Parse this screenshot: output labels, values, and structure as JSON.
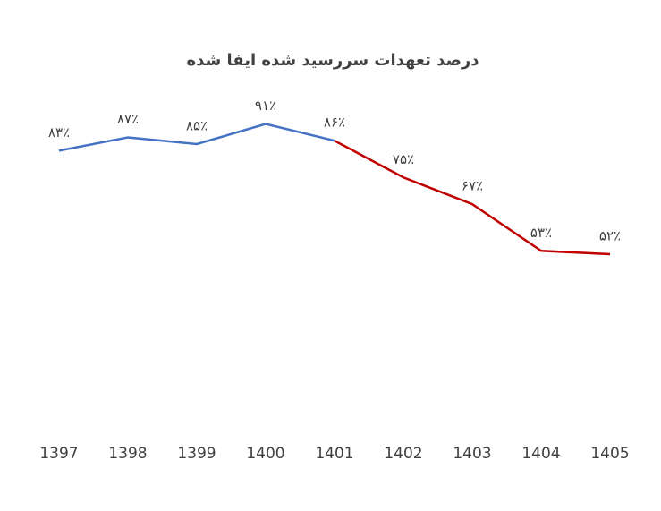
{
  "chart_data": {
    "type": "line",
    "title": "درصد تعهدات سررسید شده ایفا شده",
    "categories": [
      "1397",
      "1398",
      "1399",
      "1400",
      "1401",
      "1402",
      "1403",
      "1404",
      "1405"
    ],
    "series": [
      {
        "color": "#4472c4",
        "values": [
          83,
          87,
          85,
          91,
          86,
          null,
          null,
          null,
          null
        ],
        "value_labels": [
          "۸۳٪",
          "۸۷٪",
          "۸۵٪",
          "۹۱٪",
          "۸۶٪",
          null,
          null,
          null,
          null
        ]
      },
      {
        "color": "#c00000",
        "values": [
          null,
          null,
          null,
          null,
          86,
          75,
          67,
          53,
          52
        ],
        "value_labels": [
          null,
          null,
          null,
          null,
          null,
          "۷۵٪",
          "۶۷٪",
          "۵۳٪",
          "۵۲٪"
        ]
      }
    ],
    "ylim": [
      0,
      100
    ]
  }
}
